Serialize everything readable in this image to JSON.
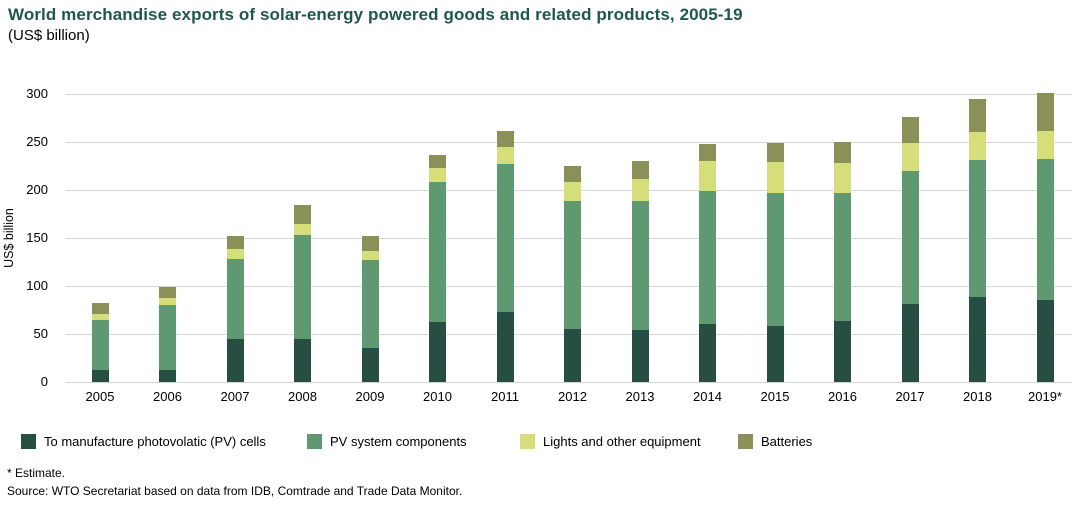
{
  "header": {
    "title": "World merchandise exports of solar-energy powered goods and related products, 2005-19",
    "subtitle": "(US$ billion)"
  },
  "chart_data": {
    "type": "bar",
    "stacked": true,
    "title": "World merchandise exports of solar-energy powered goods and related products, 2005-19",
    "subtitle": "(US$ billion)",
    "xlabel": "",
    "ylabel": "US$ billion",
    "ylim": [
      0,
      300
    ],
    "yticks": [
      0,
      50,
      100,
      150,
      200,
      250,
      300
    ],
    "grid": true,
    "legend_position": "bottom",
    "categories": [
      "2005",
      "2006",
      "2007",
      "2008",
      "2009",
      "2010",
      "2011",
      "2012",
      "2013",
      "2014",
      "2015",
      "2016",
      "2017",
      "2018",
      "2019*"
    ],
    "series": [
      {
        "name": "To manufacture photovolatic (PV) cells",
        "color": "#274e43",
        "values": [
          12,
          13,
          45,
          45,
          35,
          62,
          73,
          55,
          54,
          60,
          58,
          64,
          81,
          89,
          85
        ]
      },
      {
        "name": "PV system components",
        "color": "#5f9971",
        "values": [
          53,
          67,
          83,
          108,
          92,
          146,
          154,
          134,
          135,
          139,
          139,
          133,
          139,
          142,
          147
        ]
      },
      {
        "name": "Lights and other equipment",
        "color": "#d5de7b",
        "values": [
          6,
          8,
          11,
          12,
          9,
          15,
          18,
          19,
          23,
          31,
          32,
          31,
          29,
          29,
          29
        ]
      },
      {
        "name": "Batteries",
        "color": "#8a9057",
        "values": [
          11,
          11,
          13,
          19,
          16,
          14,
          17,
          17,
          18,
          18,
          20,
          22,
          27,
          35,
          40
        ]
      }
    ],
    "totals": [
      82,
      99,
      152,
      184,
      152,
      237,
      262,
      225,
      230,
      248,
      249,
      250,
      276,
      295,
      301
    ]
  },
  "footer": {
    "estimate_note": "* Estimate.",
    "source_note": "Source: WTO Secretariat based on data from IDB, Comtrade and Trade Data Monitor."
  }
}
